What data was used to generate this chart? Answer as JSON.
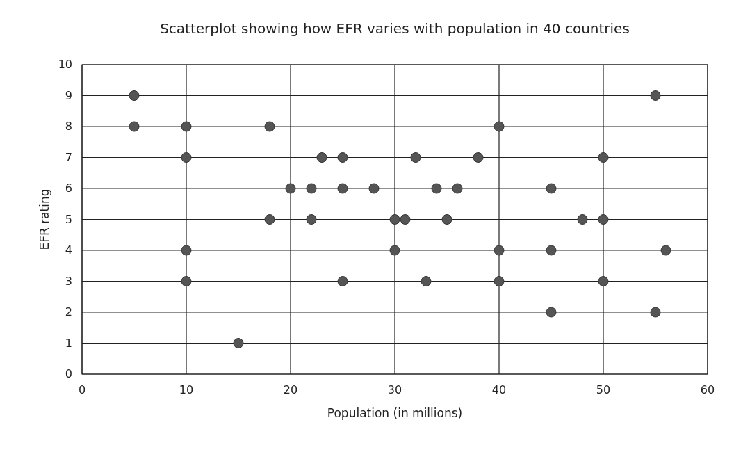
{
  "chart_data": {
    "type": "scatter",
    "title": "Scatterplot showing how EFR varies with population in 40 countries",
    "xlabel": "Population (in millions)",
    "ylabel": "EFR rating",
    "x": [
      5,
      55,
      5,
      10,
      18,
      40,
      10,
      23,
      25,
      32,
      38,
      50,
      20,
      22,
      25,
      28,
      34,
      36,
      45,
      18,
      22,
      30,
      31,
      35,
      48,
      50,
      10,
      30,
      40,
      45,
      56,
      10,
      25,
      33,
      40,
      50,
      45,
      55,
      15
    ],
    "values": [
      9,
      9,
      8,
      8,
      8,
      8,
      7,
      7,
      7,
      7,
      7,
      7,
      6,
      6,
      6,
      6,
      6,
      6,
      6,
      5,
      5,
      5,
      5,
      5,
      5,
      5,
      4,
      4,
      4,
      4,
      4,
      3,
      3,
      3,
      3,
      3,
      2,
      2,
      1
    ],
    "color": "#555555",
    "marker": "circle",
    "xlim": [
      0,
      60
    ],
    "ylim": [
      0,
      10
    ],
    "xticks": [
      0,
      10,
      20,
      30,
      40,
      50,
      60
    ],
    "yticks": [
      0,
      1,
      2,
      3,
      4,
      5,
      6,
      7,
      8,
      9,
      10
    ],
    "grid": true
  }
}
